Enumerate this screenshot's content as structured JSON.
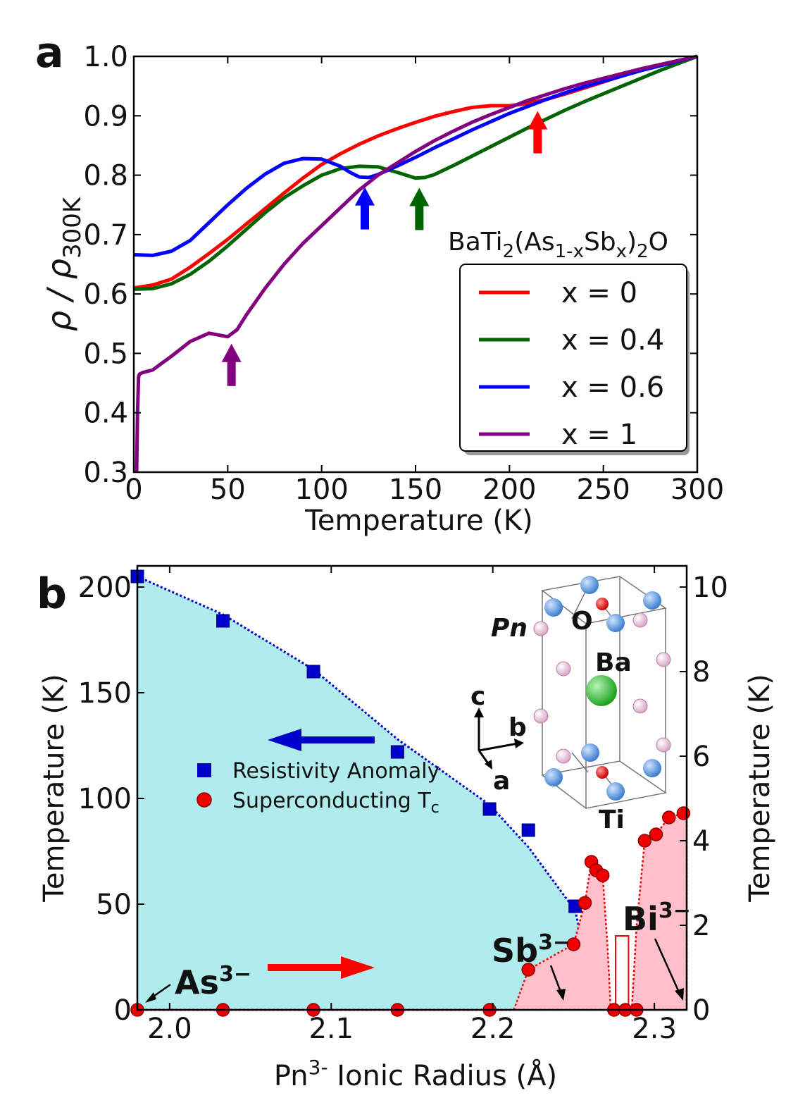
{
  "chart_data": [
    {
      "panel": "a",
      "type": "line",
      "title": "",
      "xlabel": "Temperature (K)",
      "ylabel": "ρ / ρ300K",
      "ylabel_main": "ρ / ρ",
      "ylabel_sub": "300K",
      "xlim": [
        0,
        300
      ],
      "ylim": [
        0.3,
        1.0
      ],
      "xticks": [
        "0",
        "50",
        "100",
        "150",
        "200",
        "250",
        "300"
      ],
      "yticks": [
        "0.3",
        "0.4",
        "0.5",
        "0.6",
        "0.7",
        "0.8",
        "0.9",
        "1.0"
      ],
      "legend_title": "BaTi2(As1-xSbx)2O",
      "legend_position": "lower-right",
      "series": [
        {
          "name": "x = 0",
          "color": "#ff0000",
          "x": [
            0,
            10,
            20,
            30,
            40,
            50,
            60,
            70,
            80,
            90,
            100,
            110,
            120,
            130,
            140,
            150,
            160,
            170,
            180,
            190,
            200,
            210,
            220,
            230,
            240,
            250,
            260,
            270,
            280,
            290,
            300
          ],
          "y": [
            0.61,
            0.615,
            0.625,
            0.645,
            0.668,
            0.692,
            0.718,
            0.744,
            0.77,
            0.795,
            0.818,
            0.836,
            0.852,
            0.866,
            0.878,
            0.889,
            0.899,
            0.907,
            0.914,
            0.917,
            0.917,
            0.921,
            0.928,
            0.937,
            0.947,
            0.957,
            0.967,
            0.977,
            0.986,
            0.993,
            1.0
          ]
        },
        {
          "name": "x = 0.4",
          "color": "#006400",
          "x": [
            0,
            10,
            20,
            30,
            40,
            50,
            60,
            70,
            80,
            90,
            100,
            110,
            120,
            130,
            140,
            150,
            155,
            160,
            170,
            180,
            190,
            200,
            210,
            220,
            230,
            240,
            250,
            260,
            270,
            280,
            290,
            300
          ],
          "y": [
            0.608,
            0.609,
            0.617,
            0.633,
            0.655,
            0.681,
            0.709,
            0.737,
            0.762,
            0.782,
            0.8,
            0.811,
            0.815,
            0.814,
            0.805,
            0.795,
            0.796,
            0.801,
            0.816,
            0.832,
            0.848,
            0.864,
            0.88,
            0.895,
            0.91,
            0.924,
            0.937,
            0.95,
            0.963,
            0.976,
            0.988,
            1.0
          ]
        },
        {
          "name": "x = 0.6",
          "color": "#0000ff",
          "x": [
            0,
            10,
            20,
            30,
            40,
            50,
            60,
            70,
            80,
            90,
            100,
            110,
            115,
            120,
            125,
            130,
            140,
            150,
            160,
            170,
            180,
            190,
            200,
            210,
            220,
            230,
            240,
            250,
            260,
            270,
            280,
            290,
            300
          ],
          "y": [
            0.666,
            0.665,
            0.672,
            0.69,
            0.72,
            0.75,
            0.778,
            0.802,
            0.82,
            0.828,
            0.827,
            0.815,
            0.805,
            0.797,
            0.796,
            0.801,
            0.815,
            0.83,
            0.846,
            0.861,
            0.876,
            0.89,
            0.904,
            0.916,
            0.928,
            0.939,
            0.949,
            0.958,
            0.967,
            0.976,
            0.984,
            0.992,
            1.0
          ]
        },
        {
          "name": "x = 1",
          "color": "#800080",
          "x": [
            1.5,
            2,
            2.5,
            3,
            5,
            10,
            20,
            30,
            40,
            50,
            55,
            60,
            70,
            80,
            90,
            100,
            110,
            120,
            130,
            140,
            150,
            160,
            170,
            180,
            190,
            200,
            210,
            220,
            230,
            240,
            250,
            260,
            270,
            280,
            290,
            300
          ],
          "y": [
            0.3,
            0.4,
            0.46,
            0.465,
            0.468,
            0.472,
            0.495,
            0.52,
            0.534,
            0.528,
            0.54,
            0.565,
            0.61,
            0.65,
            0.685,
            0.715,
            0.745,
            0.775,
            0.8,
            0.82,
            0.84,
            0.858,
            0.874,
            0.889,
            0.902,
            0.914,
            0.926,
            0.936,
            0.946,
            0.955,
            0.963,
            0.971,
            0.979,
            0.986,
            0.993,
            1.0
          ]
        }
      ],
      "arrows": [
        {
          "x": 52,
          "color": "#800080"
        },
        {
          "x": 123,
          "color": "#0000ff"
        },
        {
          "x": 152,
          "color": "#006400"
        },
        {
          "x": 215,
          "color": "#ff0000"
        }
      ]
    },
    {
      "panel": "b",
      "type": "scatter",
      "title": "",
      "xlabel": "Pn3- Ionic Radius (Å)",
      "xlabel_main": "Pn",
      "xlabel_sup": "3-",
      "xlabel_rest": " Ionic Radius (Å)",
      "ylabel_left": "Temperature (K)",
      "ylabel_right": "Temperature (K)",
      "xlim": [
        1.98,
        2.32
      ],
      "ylim_left": [
        0,
        210
      ],
      "ylim_right": [
        0,
        10.5
      ],
      "xticks": [
        "2.0",
        "2.1",
        "2.2",
        "2.3"
      ],
      "yticks_left": [
        "0",
        "50",
        "100",
        "150",
        "200"
      ],
      "yticks_right": [
        "0",
        "2",
        "4",
        "6",
        "8",
        "10"
      ],
      "series": [
        {
          "name": "Resistivity Anomaly",
          "axis": "left",
          "marker": "square",
          "color": "#0000cc",
          "x": [
            1.98,
            2.033,
            2.089,
            2.141,
            2.198,
            2.222,
            2.251
          ],
          "y": [
            205,
            184,
            160,
            122,
            95,
            85,
            49
          ]
        },
        {
          "name": "Superconducting Tc",
          "axis": "right",
          "marker": "circle",
          "color": "#ee0000",
          "x": [
            1.98,
            2.033,
            2.089,
            2.141,
            2.198,
            2.222,
            2.25,
            2.257,
            2.261,
            2.264,
            2.268,
            2.275,
            2.282,
            2.289,
            2.294,
            2.301,
            2.309,
            2.318
          ],
          "y": [
            0,
            0,
            0,
            0,
            0,
            0.95,
            1.55,
            2.53,
            3.5,
            3.3,
            3.18,
            0,
            0,
            0,
            4,
            4.15,
            4.55,
            4.65
          ]
        }
      ],
      "struct_labels": {
        "pn": "Pn",
        "o": "O",
        "ba": "Ba",
        "ti": "Ti",
        "c": "c",
        "b": "b",
        "a": "a"
      },
      "ion_labels": {
        "as_base": "As",
        "sb_base": "Sb",
        "bi_base": "Bi",
        "charge": "3−"
      },
      "legend_title": ""
    }
  ],
  "panel_labels": {
    "a": "a",
    "b": "b"
  },
  "legend_a": {
    "title_main": "BaTi",
    "title_sub1": "2",
    "title_mid": "(As",
    "title_sub2": "1-x",
    "title_mid2": "Sb",
    "title_sub3": "x",
    "title_mid3": ")",
    "title_sub4": "2",
    "title_end": "O"
  },
  "legend_b": {
    "item1": "Resistivity Anomaly",
    "item2_main": "Superconducting T",
    "item2_sub": "c"
  },
  "colors": {
    "anomaly_fill": "#b0ecee",
    "sc_fill": "#ffc0cb",
    "blue_arrow": "#0000cc",
    "red_arrow": "#ff0000"
  }
}
